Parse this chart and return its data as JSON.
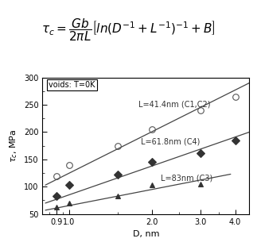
{
  "xlabel": "D, nm",
  "ylabel": "τ_c, MPa",
  "xlim": [
    0.8,
    4.5
  ],
  "ylim": [
    50,
    300
  ],
  "yticks": [
    50,
    100,
    150,
    200,
    250,
    300
  ],
  "legend_text": "voids: T=0K",
  "series": [
    {
      "label": "L=41.4nm (C1,C2)",
      "marker": "o",
      "fillstyle": "none",
      "markersize": 5.5,
      "color": "#555555",
      "data_x": [
        0.9,
        1.0,
        1.5,
        2.0,
        3.0,
        4.0
      ],
      "data_y": [
        120,
        140,
        175,
        205,
        240,
        265
      ],
      "fit_x": [
        0.82,
        4.5
      ],
      "fit_y": [
        103,
        290
      ],
      "ann_x": 1.78,
      "ann_y": 243,
      "ann_text": "L=41.4nm (C1,C2)"
    },
    {
      "label": "L=61.8nm (C4)",
      "marker": "D",
      "fillstyle": "full",
      "markersize": 5,
      "color": "#222222",
      "data_x": [
        0.9,
        1.0,
        1.5,
        2.0,
        3.0,
        4.0
      ],
      "data_y": [
        83,
        103,
        122,
        145,
        162,
        185
      ],
      "fit_x": [
        0.82,
        4.5
      ],
      "fit_y": [
        70,
        200
      ],
      "ann_x": 1.82,
      "ann_y": 175,
      "ann_text": "L=61.8nm (C4)"
    },
    {
      "label": "L=83nm (C3)",
      "marker": "^",
      "fillstyle": "full",
      "markersize": 5,
      "color": "#222222",
      "data_x": [
        0.9,
        1.0,
        1.5,
        2.0,
        3.0
      ],
      "data_y": [
        62,
        70,
        83,
        103,
        105
      ],
      "fit_x": [
        0.82,
        3.85
      ],
      "fit_y": [
        57,
        123
      ],
      "ann_x": 2.15,
      "ann_y": 108,
      "ann_text": "L=83nm (C3)"
    }
  ],
  "tick_fontsize": 7,
  "label_fontsize": 8,
  "ann_fontsize": 7,
  "formula_fontsize": 11
}
